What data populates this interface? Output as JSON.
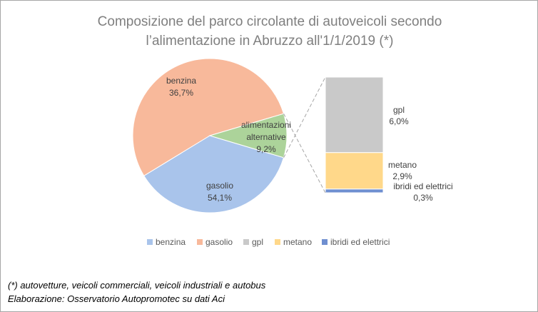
{
  "chart_data": {
    "type": "pie-of-bar",
    "title": "Composizione del parco circolante di autoveicoli secondo l’alimentazione in Abruzzo all'1/1/2019 (*)",
    "pie": {
      "categories": [
        "benzina",
        "gasolio",
        "alimentazioni alternative"
      ],
      "values": [
        36.7,
        54.1,
        9.2
      ],
      "value_labels": [
        "36,7%",
        "54,1%",
        "9,2%"
      ],
      "colors": [
        "#a9c4eb",
        "#f8b99b",
        "#acd39a"
      ]
    },
    "bar": {
      "categories": [
        "gpl",
        "metano",
        "ibridi ed elettrici"
      ],
      "values": [
        6.0,
        2.9,
        0.3
      ],
      "value_labels": [
        "6,0%",
        "2,9%",
        "0,3%"
      ],
      "colors": [
        "#c9c9c9",
        "#ffd88a",
        "#6f8fd0"
      ]
    },
    "notes": [
      "(*) autovetture, veicoli commerciali, veicoli industriali e autobus",
      "Elaborazione: Osservatorio Autopromotec su dati Aci"
    ]
  }
}
